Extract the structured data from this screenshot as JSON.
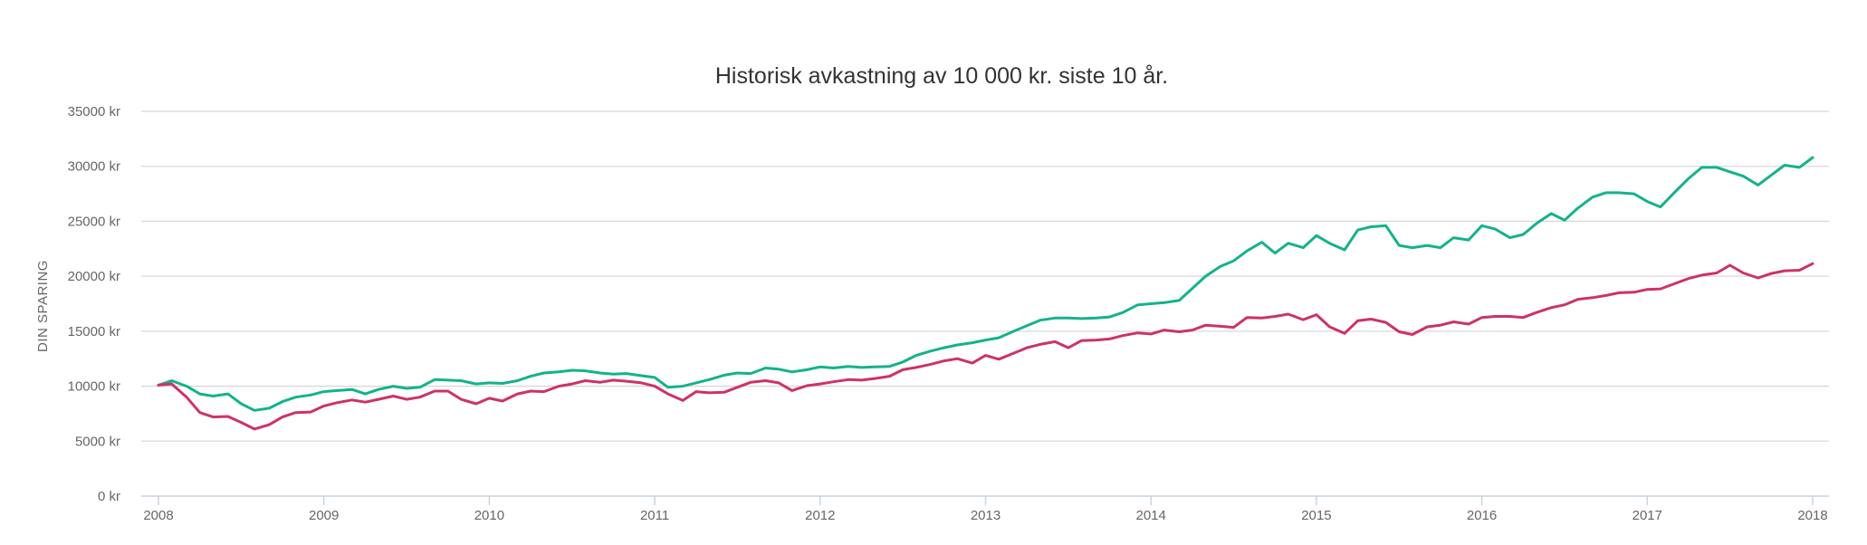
{
  "chart_data": {
    "type": "line",
    "title": "Historisk avkastning av 10 000 kr. siste 10 år.",
    "ylabel": "DIN SPARING",
    "xlabel": "",
    "xlim": [
      2008.0,
      2018.0
    ],
    "ylim": [
      0,
      35000
    ],
    "yticks": [
      0,
      5000,
      10000,
      15000,
      20000,
      25000,
      30000,
      35000
    ],
    "ytick_labels": [
      "0 kr",
      "5000 kr",
      "10000 kr",
      "15000 kr",
      "20000 kr",
      "25000 kr",
      "30000 kr",
      "35000 kr"
    ],
    "xticks": [
      2008,
      2009,
      2010,
      2011,
      2012,
      2013,
      2014,
      2015,
      2016,
      2017,
      2018
    ],
    "xtick_labels": [
      "2008",
      "2009",
      "2010",
      "2011",
      "2012",
      "2013",
      "2014",
      "2015",
      "2016",
      "2017",
      "2018"
    ],
    "grid": true,
    "legend": "none",
    "series": [
      {
        "color": "#14b28c",
        "x": [
          2008.0,
          2008.08,
          2008.17,
          2008.25,
          2008.33,
          2008.42,
          2008.5,
          2008.58,
          2008.67,
          2008.75,
          2008.83,
          2008.92,
          2009.0,
          2009.08,
          2009.17,
          2009.25,
          2009.33,
          2009.42,
          2009.5,
          2009.58,
          2009.67,
          2009.75,
          2009.83,
          2009.92,
          2010.0,
          2010.08,
          2010.17,
          2010.25,
          2010.33,
          2010.42,
          2010.5,
          2010.58,
          2010.67,
          2010.75,
          2010.83,
          2010.92,
          2011.0,
          2011.08,
          2011.17,
          2011.25,
          2011.33,
          2011.42,
          2011.5,
          2011.58,
          2011.67,
          2011.75,
          2011.83,
          2011.92,
          2012.0,
          2012.08,
          2012.17,
          2012.25,
          2012.33,
          2012.42,
          2012.5,
          2012.58,
          2012.67,
          2012.75,
          2012.83,
          2012.92,
          2013.0,
          2013.08,
          2013.17,
          2013.25,
          2013.33,
          2013.42,
          2013.5,
          2013.58,
          2013.67,
          2013.75,
          2013.83,
          2013.92,
          2014.0,
          2014.08,
          2014.17,
          2014.25,
          2014.33,
          2014.42,
          2014.5,
          2014.58,
          2014.67,
          2014.75,
          2014.83,
          2014.92,
          2015.0,
          2015.08,
          2015.17,
          2015.25,
          2015.33,
          2015.42,
          2015.5,
          2015.58,
          2015.67,
          2015.75,
          2015.83,
          2015.92,
          2016.0,
          2016.08,
          2016.17,
          2016.25,
          2016.33,
          2016.42,
          2016.5,
          2016.58,
          2016.67,
          2016.75,
          2016.83,
          2016.92,
          2017.0,
          2017.08,
          2017.17,
          2017.25,
          2017.33,
          2017.42,
          2017.5,
          2017.58,
          2017.67,
          2017.75,
          2017.83,
          2017.92,
          2018.0
        ],
        "y": [
          10100,
          10500,
          10000,
          9300,
          9100,
          9300,
          8400,
          7800,
          8000,
          8600,
          9000,
          9200,
          9500,
          9600,
          9700,
          9300,
          9700,
          10000,
          9800,
          9900,
          10600,
          10550,
          10500,
          10200,
          10300,
          10250,
          10500,
          10900,
          11200,
          11300,
          11450,
          11400,
          11200,
          11100,
          11150,
          10950,
          10800,
          9900,
          10000,
          10300,
          10600,
          11000,
          11200,
          11150,
          11650,
          11550,
          11300,
          11500,
          11750,
          11650,
          11800,
          11700,
          11750,
          11800,
          12200,
          12800,
          13200,
          13500,
          13750,
          13950,
          14200,
          14400,
          15000,
          15500,
          16000,
          16200,
          16200,
          16150,
          16200,
          16300,
          16700,
          17400,
          17500,
          17600,
          17800,
          18900,
          20000,
          20900,
          21400,
          22300,
          23100,
          22100,
          23000,
          22600,
          23700,
          23000,
          22400,
          24200,
          24500,
          24600,
          22800,
          22600,
          22800,
          22600,
          23500,
          23300,
          24600,
          24300,
          23500,
          23800,
          24800,
          25700,
          25100,
          26200,
          27200,
          27600,
          27600,
          27500,
          26800,
          26300,
          27700,
          28900,
          29900,
          29900,
          29500,
          29100,
          28300,
          29200,
          30100,
          29900,
          30800
        ]
      },
      {
        "color": "#cc3366",
        "x": [
          2008.0,
          2008.08,
          2008.17,
          2008.25,
          2008.33,
          2008.42,
          2008.5,
          2008.58,
          2008.67,
          2008.75,
          2008.83,
          2008.92,
          2009.0,
          2009.08,
          2009.17,
          2009.25,
          2009.33,
          2009.42,
          2009.5,
          2009.58,
          2009.67,
          2009.75,
          2009.83,
          2009.92,
          2010.0,
          2010.08,
          2010.17,
          2010.25,
          2010.33,
          2010.42,
          2010.5,
          2010.58,
          2010.67,
          2010.75,
          2010.83,
          2010.92,
          2011.0,
          2011.08,
          2011.17,
          2011.25,
          2011.33,
          2011.42,
          2011.5,
          2011.58,
          2011.67,
          2011.75,
          2011.83,
          2011.92,
          2012.0,
          2012.08,
          2012.17,
          2012.25,
          2012.33,
          2012.42,
          2012.5,
          2012.58,
          2012.67,
          2012.75,
          2012.83,
          2012.92,
          2013.0,
          2013.08,
          2013.17,
          2013.25,
          2013.33,
          2013.42,
          2013.5,
          2013.58,
          2013.67,
          2013.75,
          2013.83,
          2013.92,
          2014.0,
          2014.08,
          2014.17,
          2014.25,
          2014.33,
          2014.42,
          2014.5,
          2014.58,
          2014.67,
          2014.75,
          2014.83,
          2014.92,
          2015.0,
          2015.08,
          2015.17,
          2015.25,
          2015.33,
          2015.42,
          2015.5,
          2015.58,
          2015.67,
          2015.75,
          2015.83,
          2015.92,
          2016.0,
          2016.08,
          2016.17,
          2016.25,
          2016.33,
          2016.42,
          2016.5,
          2016.58,
          2016.67,
          2016.75,
          2016.83,
          2016.92,
          2017.0,
          2017.08,
          2017.17,
          2017.25,
          2017.33,
          2017.42,
          2017.5,
          2017.58,
          2017.67,
          2017.75,
          2017.83,
          2017.92,
          2018.0
        ],
        "y": [
          10100,
          10200,
          9000,
          7600,
          7200,
          7250,
          6700,
          6100,
          6500,
          7200,
          7600,
          7650,
          8200,
          8500,
          8750,
          8550,
          8800,
          9100,
          8800,
          9000,
          9550,
          9550,
          8800,
          8400,
          8900,
          8650,
          9300,
          9550,
          9500,
          10000,
          10200,
          10500,
          10350,
          10550,
          10450,
          10300,
          10000,
          9300,
          8700,
          9500,
          9400,
          9450,
          9900,
          10350,
          10500,
          10300,
          9600,
          10050,
          10200,
          10400,
          10600,
          10550,
          10700,
          10900,
          11500,
          11700,
          12000,
          12300,
          12500,
          12100,
          12800,
          12450,
          13000,
          13500,
          13800,
          14050,
          13500,
          14150,
          14200,
          14300,
          14600,
          14850,
          14750,
          15100,
          14950,
          15100,
          15550,
          15450,
          15350,
          16250,
          16200,
          16350,
          16550,
          16050,
          16500,
          15400,
          14800,
          15950,
          16100,
          15800,
          14950,
          14700,
          15400,
          15550,
          15850,
          15650,
          16250,
          16350,
          16350,
          16250,
          16700,
          17150,
          17400,
          17900,
          18050,
          18250,
          18500,
          18550,
          18800,
          18850,
          19350,
          19800,
          20100,
          20300,
          21000,
          20300,
          19850,
          20250,
          20500,
          20550,
          21150
        ]
      }
    ]
  }
}
